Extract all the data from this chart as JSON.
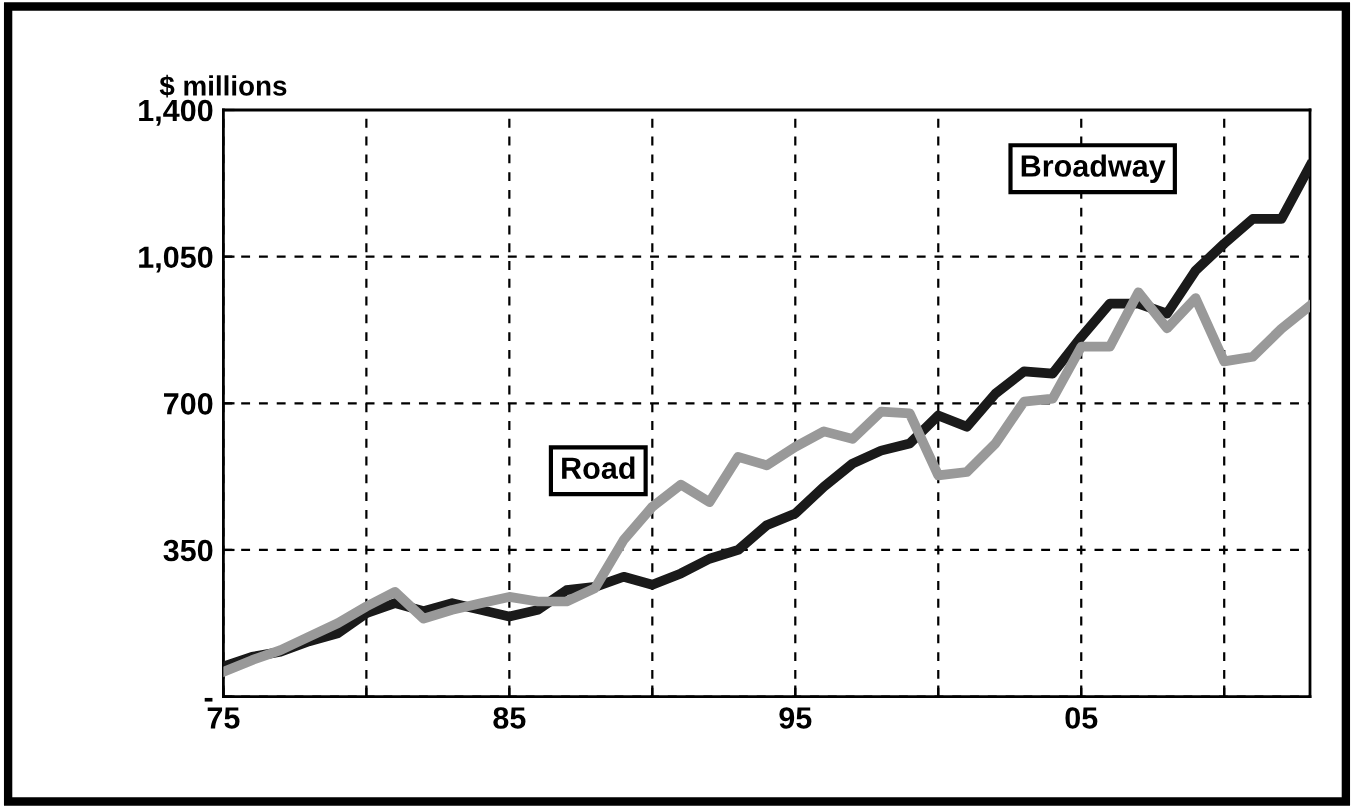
{
  "chart_data": {
    "type": "line",
    "ylabel": "$ millions",
    "x": [
      1975,
      1976,
      1977,
      1978,
      1979,
      1980,
      1981,
      1982,
      1983,
      1984,
      1985,
      1986,
      1987,
      1988,
      1989,
      1990,
      1991,
      1992,
      1993,
      1994,
      1995,
      1996,
      1997,
      1998,
      1999,
      2000,
      2001,
      2002,
      2003,
      2004,
      2005,
      2006,
      2007,
      2008,
      2009,
      2010,
      2011,
      2012,
      2013
    ],
    "series": [
      {
        "name": "Broadway",
        "color": "#1a1a1a",
        "values": [
          72,
          95,
          107,
          132,
          151,
          199,
          223,
          204,
          223,
          207,
          191,
          207,
          254,
          262,
          286,
          267,
          294,
          329,
          350,
          409,
          437,
          501,
          556,
          587,
          604,
          671,
          644,
          723,
          776,
          771,
          858,
          938,
          938,
          914,
          1017,
          1081,
          1140,
          1140,
          1267
        ]
      },
      {
        "name": "Road",
        "color": "#999999",
        "values": [
          59,
          87,
          111,
          143,
          175,
          215,
          250,
          186,
          207,
          223,
          238,
          227,
          227,
          259,
          374,
          453,
          506,
          464,
          572,
          552,
          596,
          633,
          615,
          680,
          676,
          528,
          536,
          604,
          704,
          711,
          835,
          835,
          965,
          879,
          951,
          800,
          811,
          878,
          933
        ]
      }
    ],
    "xlim": [
      1975,
      2013
    ],
    "xticks": [
      {
        "value": 1975,
        "label": "75"
      },
      {
        "value": 1980,
        "label": null
      },
      {
        "value": 1985,
        "label": "85"
      },
      {
        "value": 1990,
        "label": null
      },
      {
        "value": 1995,
        "label": "95"
      },
      {
        "value": 2000,
        "label": null
      },
      {
        "value": 2005,
        "label": "05"
      },
      {
        "value": 2010,
        "label": null
      }
    ],
    "ylim": [
      0,
      1400
    ],
    "yticks": [
      {
        "value": 0,
        "label": "-"
      },
      350,
      700,
      {
        "value": 1050,
        "label": "1,050"
      },
      {
        "value": 1400,
        "label": "1,400"
      }
    ],
    "grid": true,
    "legend": false,
    "marker": "none",
    "line_style": "solid"
  }
}
